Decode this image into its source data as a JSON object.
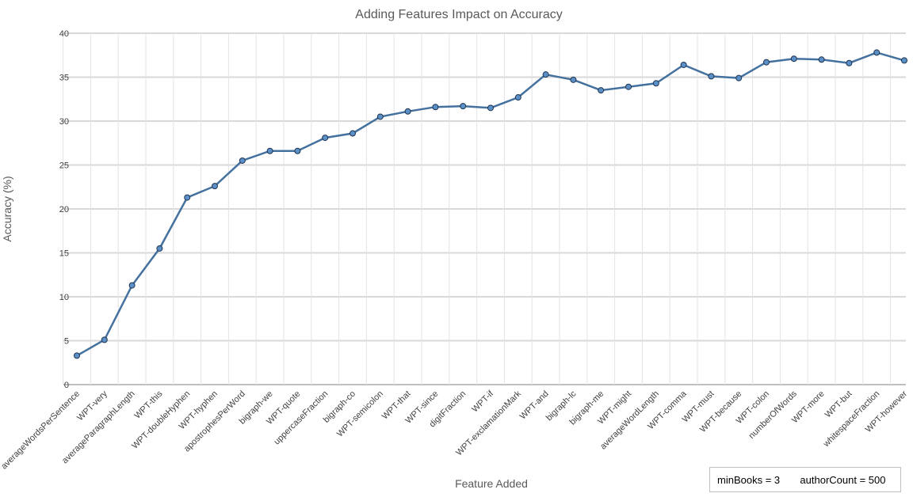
{
  "chart_data": {
    "type": "line",
    "title": "Adding Features Impact on Accuracy",
    "xlabel": "Feature Added",
    "ylabel": "Accuracy (%)",
    "ylim": [
      0,
      40
    ],
    "yticks": [
      0,
      5,
      10,
      15,
      20,
      25,
      30,
      35,
      40
    ],
    "grid": true,
    "line_color": "#44719e",
    "marker_fill": "#5b8fc7",
    "categories": [
      "averageWordsPerSentence",
      "WPT-very",
      "averageParagraphLength",
      "WPT-this",
      "WPT-doubleHyphen",
      "WPT-hyphen",
      "apostrophesPerWord",
      "bigraph-we",
      "WPT-quote",
      "uppercaseFraction",
      "bigraph-co",
      "WPT-semicolon",
      "WPT-that",
      "WPT-since",
      "digitFraction",
      "WPT-if",
      "WPT-exclamationMark",
      "WPT-and",
      "bigraph-lc",
      "bigraph-me",
      "WPT-might",
      "averageWordLength",
      "WPT-comma",
      "WPT-must",
      "WPT-because",
      "WPT-colon",
      "numberOfWords",
      "WPT-more",
      "WPT-but",
      "whitespaceFraction",
      "WPT-however"
    ],
    "series": [
      {
        "values": [
          3.3,
          5.1,
          11.3,
          15.5,
          21.3,
          22.6,
          25.5,
          26.6,
          26.6,
          28.1,
          28.6,
          30.5,
          31.1,
          31.6,
          31.7,
          31.5,
          32.7,
          35.3,
          34.7,
          33.5,
          33.9,
          34.3,
          36.4,
          35.1,
          34.9,
          36.7,
          37.1,
          37.0,
          36.6,
          37.8,
          36.9
        ]
      }
    ]
  },
  "note": {
    "min_books": "minBooks = 3",
    "author_count": "authorCount = 500"
  }
}
